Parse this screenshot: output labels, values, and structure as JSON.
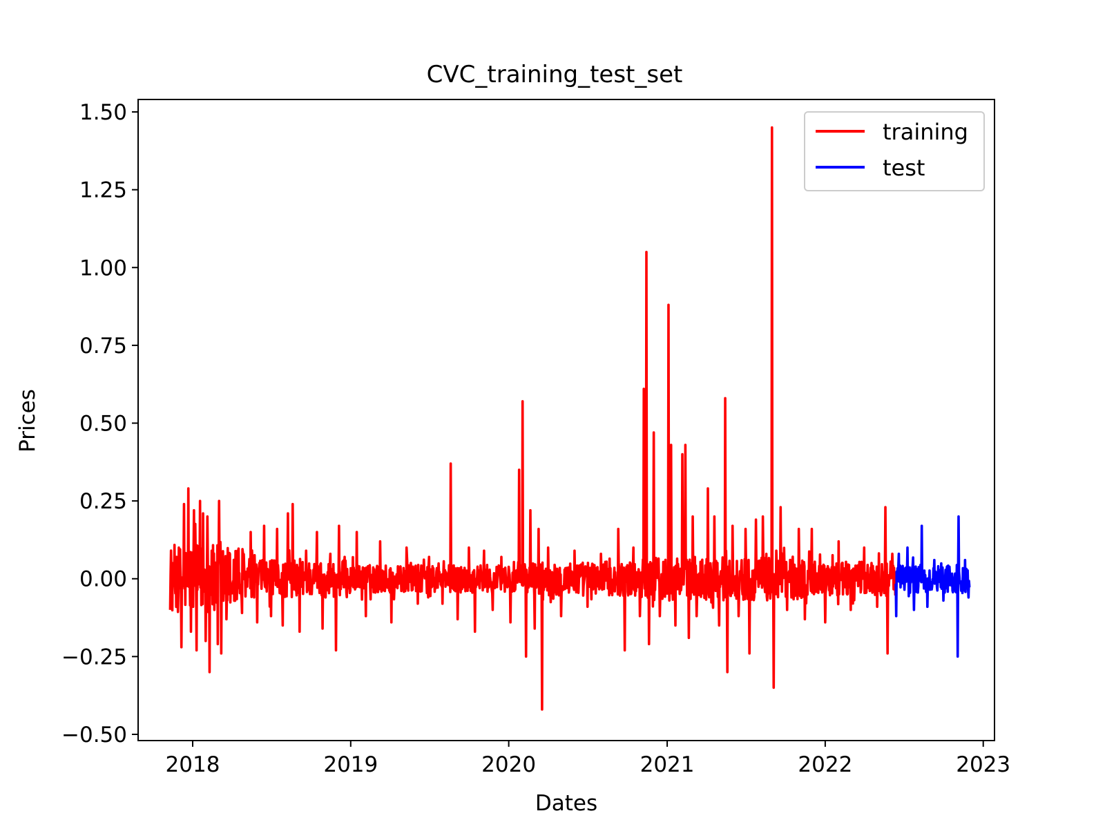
{
  "chart_data": {
    "type": "line",
    "title": "CVC_training_test_set",
    "xlabel": "Dates",
    "ylabel": "Prices",
    "xlim": [
      "2017-08-28",
      "2023-01-27"
    ],
    "ylim": [
      -0.52,
      1.54
    ],
    "x_ticks": [
      "2018",
      "2019",
      "2020",
      "2021",
      "2022",
      "2023"
    ],
    "y_ticks": [
      1.5,
      1.25,
      1.0,
      0.75,
      0.5,
      0.25,
      0.0,
      -0.25,
      -0.5
    ],
    "y_tick_labels": [
      "1.50",
      "1.25",
      "1.00",
      "0.75",
      "0.50",
      "0.25",
      "0.00",
      "−0.25",
      "−0.50"
    ],
    "legend": {
      "placement": "top-right",
      "entries": [
        "training",
        "test"
      ]
    },
    "grid": false,
    "series": [
      {
        "name": "training",
        "color": "#ff0000",
        "x_range": [
          "2017-11-10",
          "2022-06-12"
        ],
        "points": 1676,
        "baseline": 0.0,
        "spikes": [
          [
            "2017-11-10",
            -0.1
          ],
          [
            "2017-11-16",
            0.05
          ],
          [
            "2017-11-25",
            0.07
          ],
          [
            "2017-12-06",
            -0.22
          ],
          [
            "2017-12-12",
            0.24
          ],
          [
            "2017-12-22",
            0.29
          ],
          [
            "2017-12-28",
            -0.17
          ],
          [
            "2018-01-04",
            0.22
          ],
          [
            "2018-01-10",
            -0.23
          ],
          [
            "2018-01-18",
            0.25
          ],
          [
            "2018-01-25",
            0.21
          ],
          [
            "2018-01-31",
            -0.2
          ],
          [
            "2018-02-04",
            0.2
          ],
          [
            "2018-02-09",
            -0.3
          ],
          [
            "2018-02-14",
            0.09
          ],
          [
            "2018-02-20",
            -0.1
          ],
          [
            "2018-02-28",
            -0.21
          ],
          [
            "2018-03-03",
            0.25
          ],
          [
            "2018-03-08",
            -0.24
          ],
          [
            "2018-03-20",
            -0.13
          ],
          [
            "2018-03-28",
            0.08
          ],
          [
            "2018-04-15",
            0.09
          ],
          [
            "2018-04-25",
            -0.11
          ],
          [
            "2018-05-15",
            0.15
          ],
          [
            "2018-05-30",
            -0.14
          ],
          [
            "2018-06-15",
            0.17
          ],
          [
            "2018-07-01",
            -0.12
          ],
          [
            "2018-07-15",
            0.16
          ],
          [
            "2018-07-28",
            -0.15
          ],
          [
            "2018-08-09",
            0.21
          ],
          [
            "2018-08-20",
            0.24
          ],
          [
            "2018-09-05",
            -0.17
          ],
          [
            "2018-09-20",
            0.09
          ],
          [
            "2018-10-15",
            0.15
          ],
          [
            "2018-10-28",
            -0.16
          ],
          [
            "2018-11-15",
            0.08
          ],
          [
            "2018-11-28",
            -0.23
          ],
          [
            "2018-12-05",
            0.17
          ],
          [
            "2018-12-18",
            0.07
          ],
          [
            "2019-01-15",
            0.15
          ],
          [
            "2019-02-05",
            -0.12
          ],
          [
            "2019-03-10",
            0.12
          ],
          [
            "2019-04-05",
            -0.14
          ],
          [
            "2019-05-10",
            0.1
          ],
          [
            "2019-06-05",
            -0.08
          ],
          [
            "2019-07-01",
            0.07
          ],
          [
            "2019-08-01",
            -0.08
          ],
          [
            "2019-08-20",
            0.37
          ],
          [
            "2019-09-05",
            -0.13
          ],
          [
            "2019-10-01",
            0.1
          ],
          [
            "2019-10-15",
            -0.17
          ],
          [
            "2019-11-05",
            0.09
          ],
          [
            "2019-11-25",
            -0.1
          ],
          [
            "2019-12-15",
            0.07
          ],
          [
            "2020-01-05",
            -0.14
          ],
          [
            "2020-01-25",
            0.35
          ],
          [
            "2020-02-02",
            0.57
          ],
          [
            "2020-02-10",
            -0.25
          ],
          [
            "2020-02-20",
            0.22
          ],
          [
            "2020-03-01",
            -0.16
          ],
          [
            "2020-03-10",
            0.16
          ],
          [
            "2020-03-18",
            -0.42
          ],
          [
            "2020-04-01",
            0.1
          ],
          [
            "2020-05-01",
            -0.12
          ],
          [
            "2020-06-01",
            0.09
          ],
          [
            "2020-07-01",
            -0.09
          ],
          [
            "2020-08-01",
            0.08
          ],
          [
            "2020-09-10",
            0.16
          ],
          [
            "2020-09-25",
            -0.23
          ],
          [
            "2020-10-15",
            0.1
          ],
          [
            "2020-10-30",
            -0.12
          ],
          [
            "2020-11-08",
            0.61
          ],
          [
            "2020-11-14",
            1.05
          ],
          [
            "2020-11-20",
            -0.21
          ],
          [
            "2020-12-01",
            0.47
          ],
          [
            "2020-12-15",
            -0.12
          ],
          [
            "2021-01-04",
            0.88
          ],
          [
            "2021-01-10",
            0.43
          ],
          [
            "2021-01-20",
            -0.15
          ],
          [
            "2021-02-05",
            0.4
          ],
          [
            "2021-02-12",
            0.43
          ],
          [
            "2021-02-20",
            -0.19
          ],
          [
            "2021-03-01",
            0.2
          ],
          [
            "2021-03-10",
            -0.12
          ],
          [
            "2021-04-05",
            0.29
          ],
          [
            "2021-04-20",
            0.2
          ],
          [
            "2021-05-01",
            -0.15
          ],
          [
            "2021-05-15",
            0.58
          ],
          [
            "2021-05-20",
            -0.3
          ],
          [
            "2021-06-01",
            0.17
          ],
          [
            "2021-06-15",
            -0.12
          ],
          [
            "2021-07-01",
            0.16
          ],
          [
            "2021-07-10",
            -0.24
          ],
          [
            "2021-07-25",
            0.19
          ],
          [
            "2021-08-10",
            0.2
          ],
          [
            "2021-08-25",
            0.04
          ],
          [
            "2021-08-31",
            1.45
          ],
          [
            "2021-09-04",
            -0.35
          ],
          [
            "2021-09-10",
            0.09
          ],
          [
            "2021-09-20",
            0.23
          ],
          [
            "2021-10-05",
            -0.1
          ],
          [
            "2021-11-01",
            0.16
          ],
          [
            "2021-11-15",
            -0.13
          ],
          [
            "2021-12-01",
            0.16
          ],
          [
            "2022-01-01",
            -0.14
          ],
          [
            "2022-02-01",
            0.12
          ],
          [
            "2022-03-01",
            -0.1
          ],
          [
            "2022-04-01",
            0.1
          ],
          [
            "2022-05-01",
            -0.09
          ],
          [
            "2022-05-20",
            0.23
          ],
          [
            "2022-05-25",
            -0.24
          ],
          [
            "2022-06-05",
            0.08
          ]
        ]
      },
      {
        "name": "test",
        "color": "#0000ff",
        "x_range": [
          "2022-06-13",
          "2022-12-01"
        ],
        "points": 172,
        "baseline": 0.0,
        "spikes": [
          [
            "2022-06-14",
            -0.12
          ],
          [
            "2022-06-20",
            0.08
          ],
          [
            "2022-07-10",
            0.1
          ],
          [
            "2022-07-25",
            -0.1
          ],
          [
            "2022-08-12",
            0.17
          ],
          [
            "2022-08-25",
            -0.09
          ],
          [
            "2022-09-10",
            0.06
          ],
          [
            "2022-10-01",
            -0.07
          ],
          [
            "2022-11-03",
            -0.25
          ],
          [
            "2022-11-05",
            0.2
          ],
          [
            "2022-11-20",
            0.06
          ],
          [
            "2022-11-28",
            -0.06
          ]
        ]
      }
    ]
  }
}
